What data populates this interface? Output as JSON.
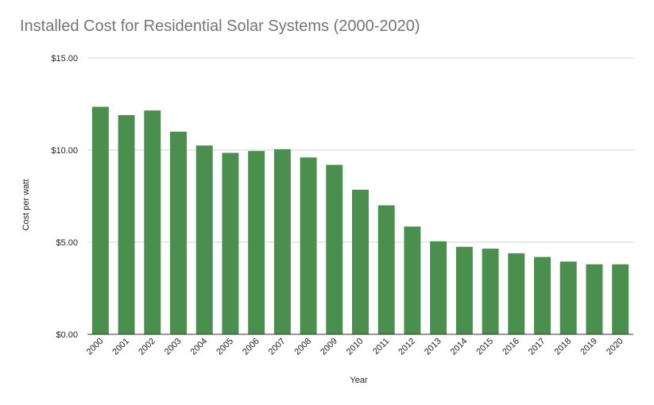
{
  "chart_data": {
    "type": "bar",
    "title": "Installed Cost for Residential Solar Systems (2000-2020)",
    "xlabel": "Year",
    "ylabel": "Cost per watt",
    "categories": [
      "2000",
      "2001",
      "2002",
      "2003",
      "2004",
      "2005",
      "2006",
      "2007",
      "2008",
      "2009",
      "2010",
      "2011",
      "2012",
      "2013",
      "2014",
      "2015",
      "2016",
      "2017",
      "2018",
      "2019",
      "2020"
    ],
    "values": [
      12.35,
      11.9,
      12.15,
      11.0,
      10.25,
      9.85,
      9.95,
      10.05,
      9.6,
      9.2,
      7.85,
      7.0,
      5.85,
      5.05,
      4.75,
      4.65,
      4.4,
      4.2,
      3.95,
      3.8,
      3.8
    ],
    "yticks": [
      0,
      5,
      10,
      15
    ],
    "ytick_labels": [
      "$0.00",
      "$5.00",
      "$10.00",
      "$15.00"
    ],
    "ylim": [
      0,
      15
    ],
    "grid": true,
    "legend": "none",
    "colors": {
      "bar": "#4a8f4e",
      "grid": "#d3d3d3",
      "axis": "#333333"
    }
  }
}
